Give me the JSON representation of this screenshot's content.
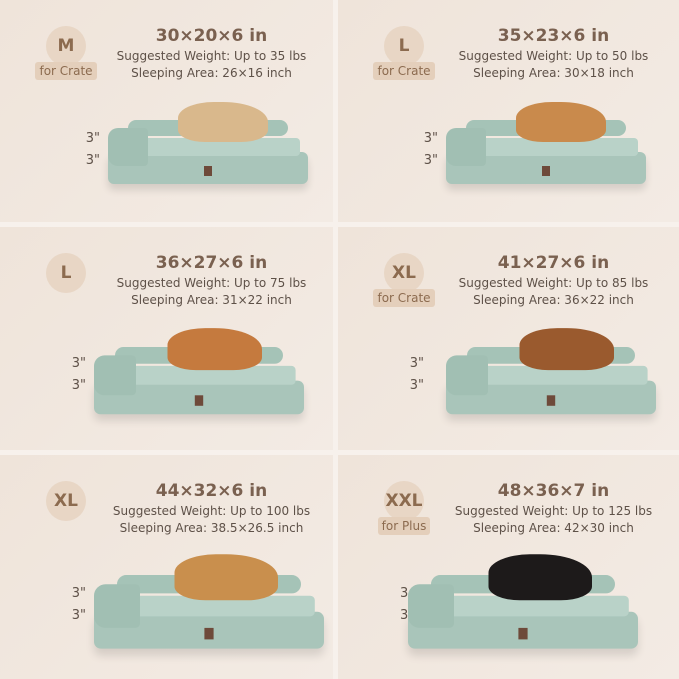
{
  "colors": {
    "background": "#efe4da",
    "badge": "#e8d6c5",
    "badge_text": "#8c6b4f",
    "bed": "#a9c5ba"
  },
  "products": [
    {
      "size": "M",
      "tag": "for Crate",
      "dims": "30×20×6 in",
      "weight": "Suggested Weight: Up to 35 lbs",
      "area": "Sleeping Area: 26×16 inch",
      "h1": "3\"",
      "h2": "3\"",
      "dog_color": "#d9b88c"
    },
    {
      "size": "L",
      "tag": "for Crate",
      "dims": "35×23×6 in",
      "weight": "Suggested Weight: Up to 50 lbs",
      "area": "Sleeping Area: 30×18 inch",
      "h1": "3\"",
      "h2": "3\"",
      "dog_color": "#c98a4c"
    },
    {
      "size": "L",
      "tag": "",
      "dims": "36×27×6 in",
      "weight": "Suggested Weight: Up to 75 lbs",
      "area": "Sleeping Area: 31×22 inch",
      "h1": "3\"",
      "h2": "3\"",
      "dog_color": "#c57a3e"
    },
    {
      "size": "XL",
      "tag": "for Crate",
      "dims": "41×27×6 in",
      "weight": "Suggested Weight: Up to 85 lbs",
      "area": "Sleeping Area: 36×22 inch",
      "h1": "3\"",
      "h2": "3\"",
      "dog_color": "#9a5a2e"
    },
    {
      "size": "XL",
      "tag": "",
      "dims": "44×32×6 in",
      "weight": "Suggested Weight: Up to 100 lbs",
      "area": "Sleeping Area: 38.5×26.5 inch",
      "h1": "3\"",
      "h2": "3\"",
      "dog_color": "#c98f4d"
    },
    {
      "size": "XXL",
      "tag": "for Plus",
      "dims": "48×36×7 in",
      "weight": "Suggested Weight: Up to 125 lbs",
      "area": "Sleeping Area: 42×30 inch",
      "h1": "3.5\"",
      "h2": "3.5\"",
      "dog_color": "#1d1a1a"
    }
  ]
}
